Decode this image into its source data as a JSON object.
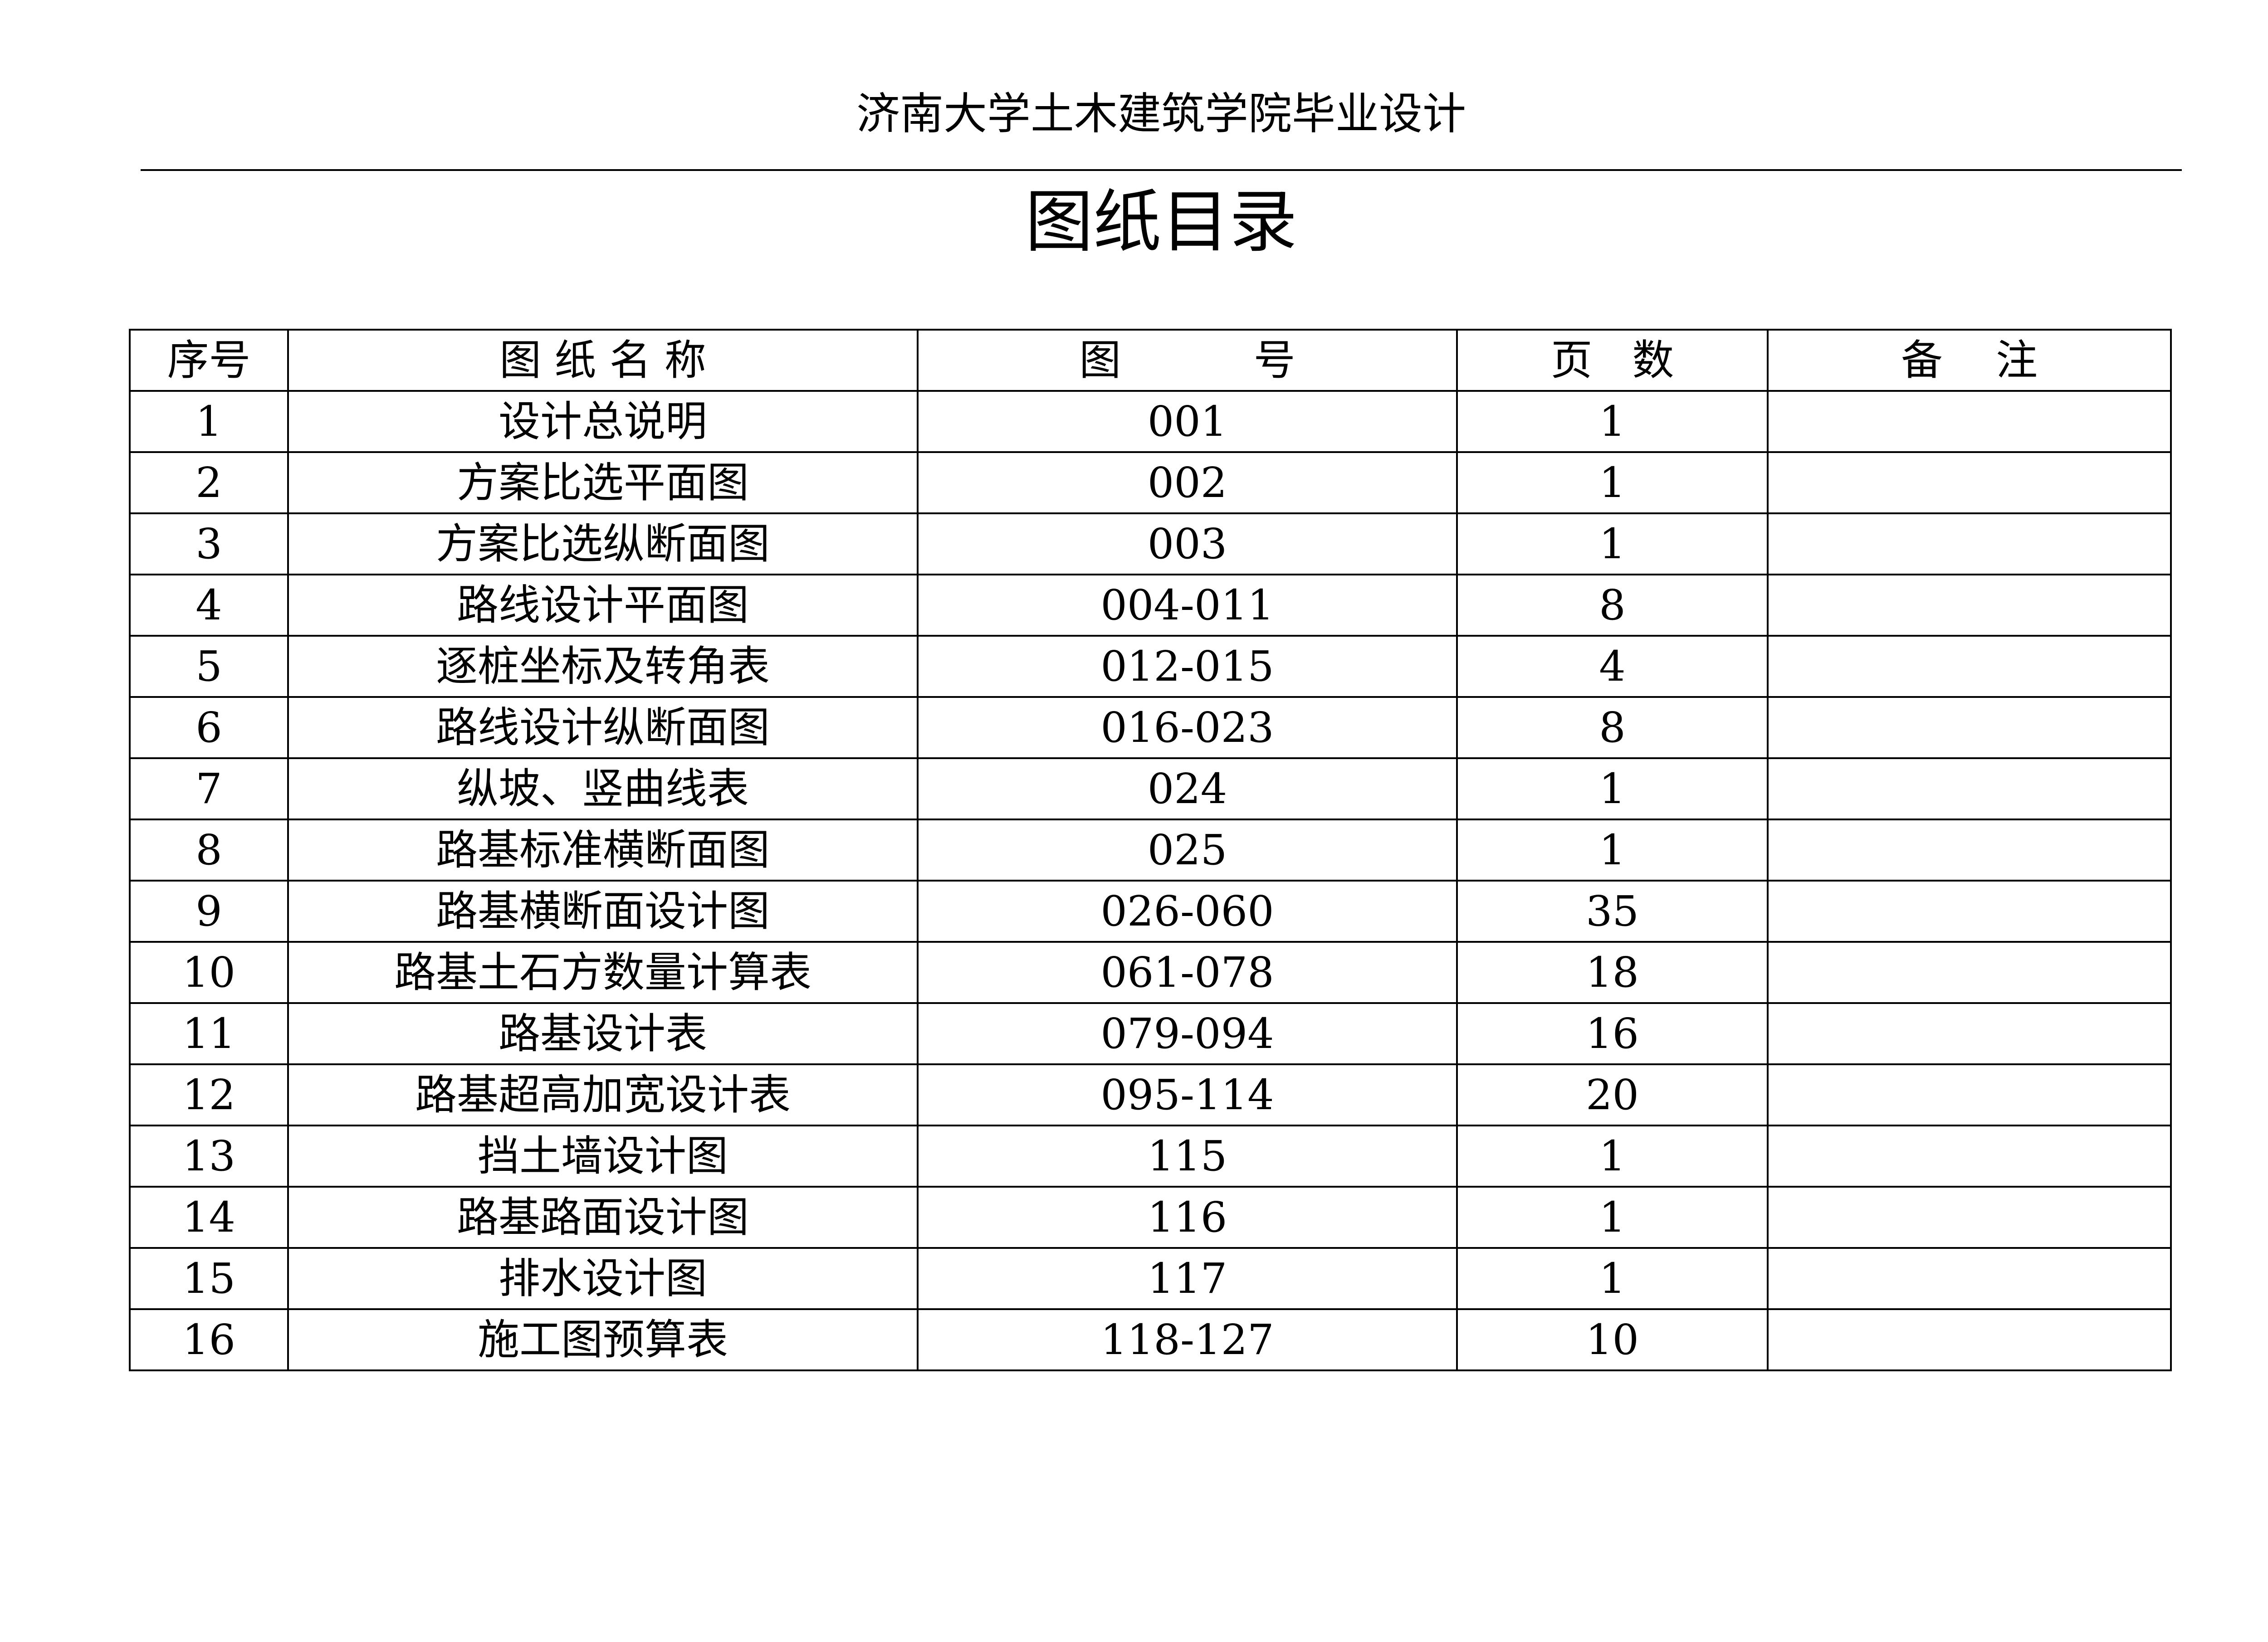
{
  "header": {
    "text": "济南大学土木建筑学院毕业设计"
  },
  "title": "图纸目录",
  "table": {
    "columns": [
      "序号",
      "图 纸 名 称",
      "图          号",
      "页   数",
      "备    注"
    ],
    "rows": [
      [
        1,
        "设计总说明",
        "001",
        1
      ],
      [
        2,
        "方案比选平面图",
        "002",
        1
      ],
      [
        3,
        "方案比选纵断面图",
        "003",
        1
      ],
      [
        4,
        "路线设计平面图",
        "004-011",
        8
      ],
      [
        5,
        "逐桩坐标及转角表",
        "012-015",
        4
      ],
      [
        6,
        "路线设计纵断面图",
        "016-023",
        8
      ],
      [
        7,
        "纵坡、竖曲线表",
        "024",
        1
      ],
      [
        8,
        "路基标准横断面图",
        "025",
        1
      ],
      [
        9,
        "路基横断面设计图",
        "026-060",
        35
      ],
      [
        10,
        "路基土石方数量计算表",
        "061-078",
        18
      ],
      [
        11,
        "路基设计表",
        "079-094",
        16
      ],
      [
        12,
        "路基超高加宽设计表",
        "095-114",
        20
      ],
      [
        13,
        "挡土墙设计图",
        "115",
        1
      ],
      [
        14,
        "路基路面设计图",
        "116",
        1
      ],
      [
        15,
        "排水设计图",
        "117",
        1
      ],
      [
        16,
        "施工图预算表",
        "118-127",
        10
      ]
    ]
  }
}
